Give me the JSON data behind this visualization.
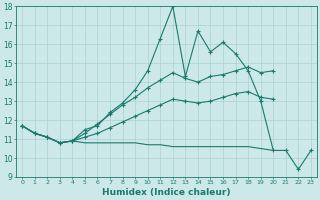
{
  "xlabel": "Humidex (Indice chaleur)",
  "x_values": [
    0,
    1,
    2,
    3,
    4,
    5,
    6,
    7,
    8,
    9,
    10,
    11,
    12,
    13,
    14,
    15,
    16,
    17,
    18,
    19,
    20,
    21,
    22,
    23
  ],
  "line1": [
    11.7,
    11.3,
    11.1,
    10.8,
    10.9,
    11.5,
    11.7,
    12.4,
    12.9,
    13.6,
    14.6,
    16.3,
    18.0,
    14.3,
    16.7,
    15.6,
    16.1,
    15.5,
    14.6,
    13.0,
    10.4,
    10.4,
    9.4,
    10.4
  ],
  "line2": [
    11.7,
    11.3,
    11.1,
    10.8,
    10.9,
    11.3,
    11.8,
    12.3,
    12.8,
    13.2,
    13.7,
    14.1,
    14.5,
    14.2,
    14.0,
    14.3,
    14.4,
    14.6,
    14.8,
    14.5,
    14.6,
    null,
    null,
    null
  ],
  "line3": [
    11.7,
    11.3,
    11.1,
    10.8,
    10.9,
    11.1,
    11.3,
    11.6,
    11.9,
    12.2,
    12.5,
    12.8,
    13.1,
    13.0,
    12.9,
    13.0,
    13.2,
    13.4,
    13.5,
    13.2,
    13.1,
    null,
    null,
    null
  ],
  "line4": [
    11.7,
    11.3,
    11.1,
    10.8,
    10.9,
    10.8,
    10.8,
    10.8,
    10.8,
    10.8,
    10.7,
    10.7,
    10.6,
    10.6,
    10.6,
    10.6,
    10.6,
    10.6,
    10.6,
    10.5,
    10.4,
    null,
    null,
    null
  ],
  "color": "#1a7a6e",
  "bg_color": "#cce8e8",
  "grid_color": "#aad0d0",
  "ylim": [
    9,
    18
  ],
  "yticks": [
    9,
    10,
    11,
    12,
    13,
    14,
    15,
    16,
    17,
    18
  ],
  "xticks": [
    0,
    1,
    2,
    3,
    4,
    5,
    6,
    7,
    8,
    9,
    10,
    11,
    12,
    13,
    14,
    15,
    16,
    17,
    18,
    19,
    20,
    21,
    22,
    23
  ]
}
